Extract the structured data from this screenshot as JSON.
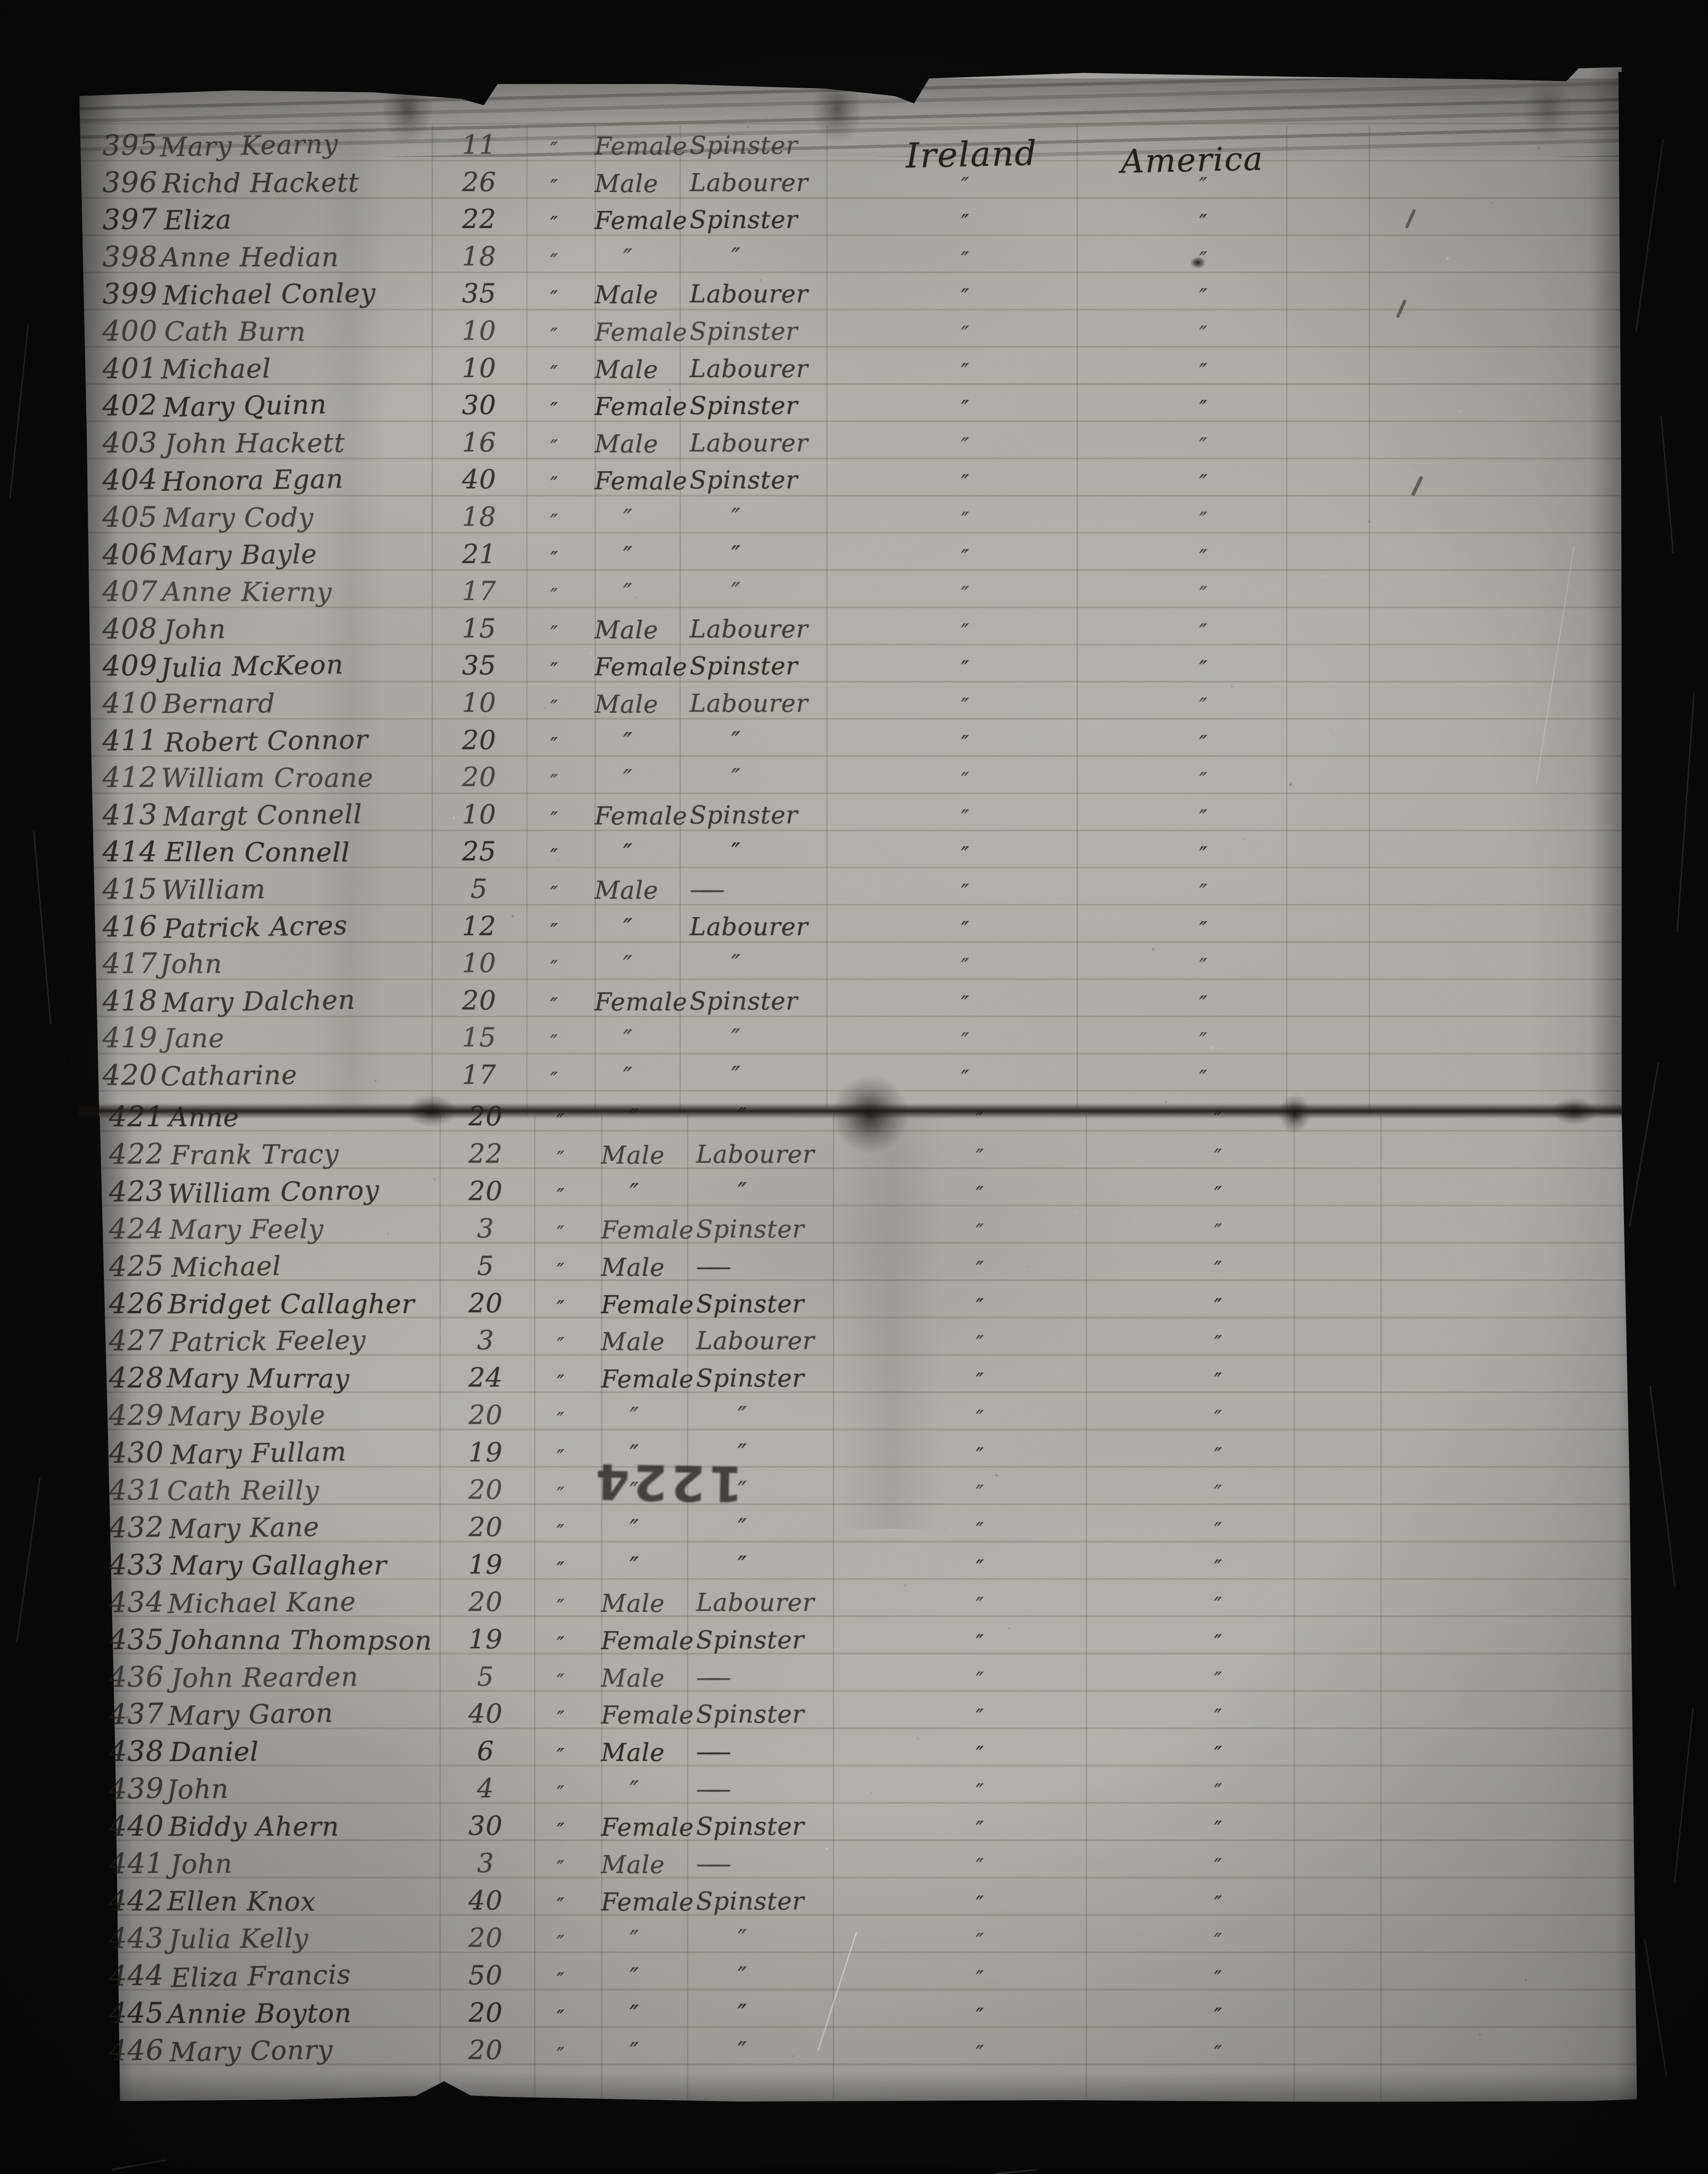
{
  "document": {
    "kind": "handwritten passenger ledger page",
    "colors": {
      "film_black": "#0a0a0a",
      "paper_gray": "#b2b1ae",
      "ink": "#25221e"
    },
    "stamp": {
      "text": "1224"
    },
    "columns": {
      "origin_header": "Ireland",
      "destination_header": "America"
    },
    "rows": [
      {
        "no": "395",
        "name": "Mary Kearny",
        "age": "11",
        "months": "″",
        "sex": "Female",
        "occupation": "Spinster",
        "origin": "",
        "destination": ""
      },
      {
        "no": "396",
        "name": "Richd Hackett",
        "age": "26",
        "months": "″",
        "sex": "Male",
        "occupation": "Labourer",
        "origin": "″",
        "destination": "″"
      },
      {
        "no": "397",
        "name": "Eliza",
        "age": "22",
        "months": "″",
        "sex": "Female",
        "occupation": "Spinster",
        "origin": "″",
        "destination": "″"
      },
      {
        "no": "398",
        "name": "Anne Hedian",
        "age": "18",
        "months": "″",
        "sex": "″",
        "occupation": "″",
        "origin": "″",
        "destination": "″"
      },
      {
        "no": "399",
        "name": "Michael Conley",
        "age": "35",
        "months": "″",
        "sex": "Male",
        "occupation": "Labourer",
        "origin": "″",
        "destination": "″"
      },
      {
        "no": "400",
        "name": "Cath Burn",
        "age": "10",
        "months": "″",
        "sex": "Female",
        "occupation": "Spinster",
        "origin": "″",
        "destination": "″"
      },
      {
        "no": "401",
        "name": "Michael",
        "age": "10",
        "months": "″",
        "sex": "Male",
        "occupation": "Labourer",
        "origin": "″",
        "destination": "″"
      },
      {
        "no": "402",
        "name": "Mary Quinn",
        "age": "30",
        "months": "″",
        "sex": "Female",
        "occupation": "Spinster",
        "origin": "″",
        "destination": "″"
      },
      {
        "no": "403",
        "name": "John Hackett",
        "age": "16",
        "months": "″",
        "sex": "Male",
        "occupation": "Labourer",
        "origin": "″",
        "destination": "″"
      },
      {
        "no": "404",
        "name": "Honora Egan",
        "age": "40",
        "months": "″",
        "sex": "Female",
        "occupation": "Spinster",
        "origin": "″",
        "destination": "″"
      },
      {
        "no": "405",
        "name": "Mary Cody",
        "age": "18",
        "months": "″",
        "sex": "″",
        "occupation": "″",
        "origin": "″",
        "destination": "″"
      },
      {
        "no": "406",
        "name": "Mary Bayle",
        "age": "21",
        "months": "″",
        "sex": "″",
        "occupation": "″",
        "origin": "″",
        "destination": "″"
      },
      {
        "no": "407",
        "name": "Anne Kierny",
        "age": "17",
        "months": "″",
        "sex": "″",
        "occupation": "″",
        "origin": "″",
        "destination": "″"
      },
      {
        "no": "408",
        "name": "John",
        "age": "15",
        "months": "″",
        "sex": "Male",
        "occupation": "Labourer",
        "origin": "″",
        "destination": "″"
      },
      {
        "no": "409",
        "name": "Julia McKeon",
        "age": "35",
        "months": "″",
        "sex": "Female",
        "occupation": "Spinster",
        "origin": "″",
        "destination": "″"
      },
      {
        "no": "410",
        "name": "Bernard",
        "age": "10",
        "months": "″",
        "sex": "Male",
        "occupation": "Labourer",
        "origin": "″",
        "destination": "″"
      },
      {
        "no": "411",
        "name": "Robert Connor",
        "age": "20",
        "months": "″",
        "sex": "″",
        "occupation": "″",
        "origin": "″",
        "destination": "″"
      },
      {
        "no": "412",
        "name": "William Croane",
        "age": "20",
        "months": "″",
        "sex": "″",
        "occupation": "″",
        "origin": "″",
        "destination": "″"
      },
      {
        "no": "413",
        "name": "Margt Connell",
        "age": "10",
        "months": "″",
        "sex": "Female",
        "occupation": "Spinster",
        "origin": "″",
        "destination": "″"
      },
      {
        "no": "414",
        "name": "Ellen Connell",
        "age": "25",
        "months": "″",
        "sex": "″",
        "occupation": "″",
        "origin": "″",
        "destination": "″"
      },
      {
        "no": "415",
        "name": "William",
        "age": "5",
        "months": "″",
        "sex": "Male",
        "occupation": "——",
        "origin": "″",
        "destination": "″"
      },
      {
        "no": "416",
        "name": "Patrick Acres",
        "age": "12",
        "months": "″",
        "sex": "″",
        "occupation": "Labourer",
        "origin": "″",
        "destination": "″"
      },
      {
        "no": "417",
        "name": "John",
        "age": "10",
        "months": "″",
        "sex": "″",
        "occupation": "″",
        "origin": "″",
        "destination": "″"
      },
      {
        "no": "418",
        "name": "Mary Dalchen",
        "age": "20",
        "months": "″",
        "sex": "Female",
        "occupation": "Spinster",
        "origin": "″",
        "destination": "″"
      },
      {
        "no": "419",
        "name": "Jane",
        "age": "15",
        "months": "″",
        "sex": "″",
        "occupation": "″",
        "origin": "″",
        "destination": "″"
      },
      {
        "no": "420",
        "name": "Catharine",
        "age": "17",
        "months": "″",
        "sex": "″",
        "occupation": "″",
        "origin": "″",
        "destination": "″"
      },
      {
        "no": "421",
        "name": "Anne",
        "age": "20",
        "months": "″",
        "sex": "″",
        "occupation": "″",
        "origin": "″",
        "destination": "″"
      },
      {
        "no": "422",
        "name": "Frank Tracy",
        "age": "22",
        "months": "″",
        "sex": "Male",
        "occupation": "Labourer",
        "origin": "″",
        "destination": "″"
      },
      {
        "no": "423",
        "name": "William Conroy",
        "age": "20",
        "months": "″",
        "sex": "″",
        "occupation": "″",
        "origin": "″",
        "destination": "″"
      },
      {
        "no": "424",
        "name": "Mary Feely",
        "age": "3",
        "months": "″",
        "sex": "Female",
        "occupation": "Spinster",
        "origin": "″",
        "destination": "″"
      },
      {
        "no": "425",
        "name": "Michael",
        "age": "5",
        "months": "″",
        "sex": "Male",
        "occupation": "——",
        "origin": "″",
        "destination": "″"
      },
      {
        "no": "426",
        "name": "Bridget Callagher",
        "age": "20",
        "months": "″",
        "sex": "Female",
        "occupation": "Spinster",
        "origin": "″",
        "destination": "″"
      },
      {
        "no": "427",
        "name": "Patrick Feeley",
        "age": "3",
        "months": "″",
        "sex": "Male",
        "occupation": "Labourer",
        "origin": "″",
        "destination": "″"
      },
      {
        "no": "428",
        "name": "Mary Murray",
        "age": "24",
        "months": "″",
        "sex": "Female",
        "occupation": "Spinster",
        "origin": "″",
        "destination": "″"
      },
      {
        "no": "429",
        "name": "Mary Boyle",
        "age": "20",
        "months": "″",
        "sex": "″",
        "occupation": "″",
        "origin": "″",
        "destination": "″"
      },
      {
        "no": "430",
        "name": "Mary Fullam",
        "age": "19",
        "months": "″",
        "sex": "″",
        "occupation": "″",
        "origin": "″",
        "destination": "″"
      },
      {
        "no": "431",
        "name": "Cath Reilly",
        "age": "20",
        "months": "″",
        "sex": "″",
        "occupation": "″",
        "origin": "″",
        "destination": "″"
      },
      {
        "no": "432",
        "name": "Mary Kane",
        "age": "20",
        "months": "″",
        "sex": "″",
        "occupation": "″",
        "origin": "″",
        "destination": "″"
      },
      {
        "no": "433",
        "name": "Mary Gallagher",
        "age": "19",
        "months": "″",
        "sex": "″",
        "occupation": "″",
        "origin": "″",
        "destination": "″"
      },
      {
        "no": "434",
        "name": "Michael Kane",
        "age": "20",
        "months": "″",
        "sex": "Male",
        "occupation": "Labourer",
        "origin": "″",
        "destination": "″"
      },
      {
        "no": "435",
        "name": "Johanna Thompson",
        "age": "19",
        "months": "″",
        "sex": "Female",
        "occupation": "Spinster",
        "origin": "″",
        "destination": "″"
      },
      {
        "no": "436",
        "name": "John Rearden",
        "age": "5",
        "months": "″",
        "sex": "Male",
        "occupation": "——",
        "origin": "″",
        "destination": "″"
      },
      {
        "no": "437",
        "name": "Mary Garon",
        "age": "40",
        "months": "″",
        "sex": "Female",
        "occupation": "Spinster",
        "origin": "″",
        "destination": "″"
      },
      {
        "no": "438",
        "name": "Daniel",
        "age": "6",
        "months": "″",
        "sex": "Male",
        "occupation": "——",
        "origin": "″",
        "destination": "″"
      },
      {
        "no": "439",
        "name": "John",
        "age": "4",
        "months": "″",
        "sex": "″",
        "occupation": "——",
        "origin": "″",
        "destination": "″"
      },
      {
        "no": "440",
        "name": "Biddy Ahern",
        "age": "30",
        "months": "″",
        "sex": "Female",
        "occupation": "Spinster",
        "origin": "″",
        "destination": "″"
      },
      {
        "no": "441",
        "name": "John",
        "age": "3",
        "months": "″",
        "sex": "Male",
        "occupation": "——",
        "origin": "″",
        "destination": "″"
      },
      {
        "no": "442",
        "name": "Ellen Knox",
        "age": "40",
        "months": "″",
        "sex": "Female",
        "occupation": "Spinster",
        "origin": "″",
        "destination": "″"
      },
      {
        "no": "443",
        "name": "Julia Kelly",
        "age": "20",
        "months": "″",
        "sex": "″",
        "occupation": "″",
        "origin": "″",
        "destination": "″"
      },
      {
        "no": "444",
        "name": "Eliza Francis",
        "age": "50",
        "months": "″",
        "sex": "″",
        "occupation": "″",
        "origin": "″",
        "destination": "″"
      },
      {
        "no": "445",
        "name": "Annie Boyton",
        "age": "20",
        "months": "″",
        "sex": "″",
        "occupation": "″",
        "origin": "″",
        "destination": "″"
      },
      {
        "no": "446",
        "name": "Mary Conry",
        "age": "20",
        "months": "″",
        "sex": "″",
        "occupation": "″",
        "origin": "″",
        "destination": "″"
      }
    ]
  }
}
